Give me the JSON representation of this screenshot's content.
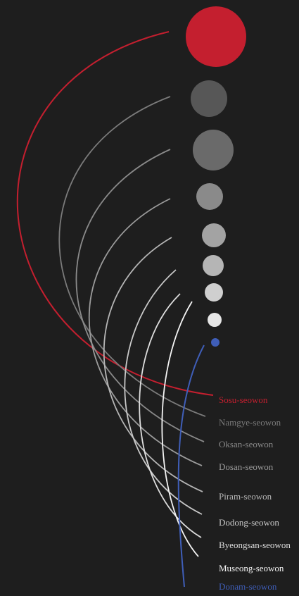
{
  "diagram": {
    "background": "#1e1e1e",
    "items": [
      {
        "label": "Sosu-seowon",
        "color": "#c41f2f",
        "circle_color": "#c41f2f"
      },
      {
        "label": "Namgye-seowon",
        "color": "#7b7b7b",
        "circle_color": "#575757"
      },
      {
        "label": "Oksan-seowon",
        "color": "#8a8a8a",
        "circle_color": "#6a6a6a"
      },
      {
        "label": "Dosan-seowon",
        "color": "#9b9b9b",
        "circle_color": "#8a8a8a"
      },
      {
        "label": "Piram-seowon",
        "color": "#b5b5b5",
        "circle_color": "#a3a3a3"
      },
      {
        "label": "Dodong-seowon",
        "color": "#c9c9c9",
        "circle_color": "#b5b5b5"
      },
      {
        "label": "Byeongsan-seowon",
        "color": "#dedede",
        "circle_color": "#cfcfcf"
      },
      {
        "label": "Museong-seowon",
        "color": "#f4f4f4",
        "circle_color": "#e6e6e6"
      },
      {
        "label": "Donam-seowon",
        "color": "#3f5eb8",
        "circle_color": "#3f5eb8"
      }
    ]
  }
}
